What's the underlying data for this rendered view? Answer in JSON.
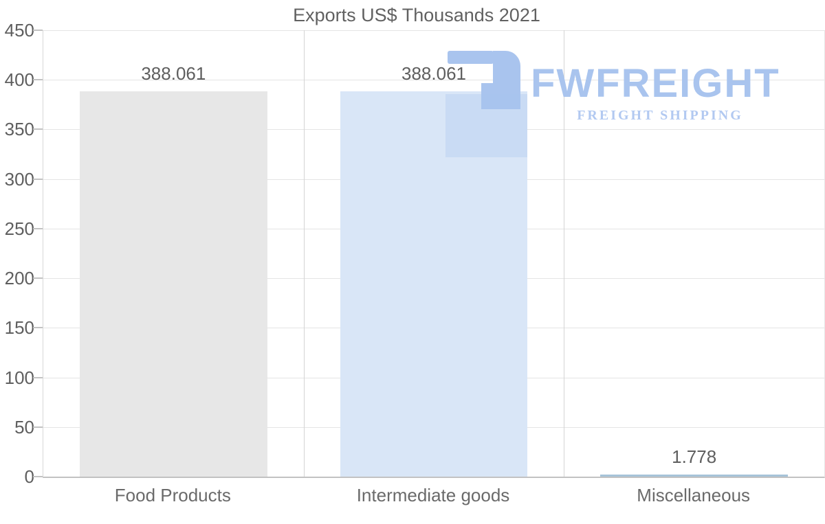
{
  "title": "Exports US$ Thousands 2021",
  "watermark": {
    "brand": "FWFREIGHT",
    "tagline": "FREIGHT SHIPPING",
    "brand_color": "#a9c4ee",
    "tagline_color": "#b2c9f1",
    "icon": "freight-logo-icon"
  },
  "chart_data": {
    "type": "bar",
    "title": "Exports US$ Thousands 2021",
    "categories": [
      "Food Products",
      "Intermediate goods",
      "Miscellaneous"
    ],
    "values": [
      388.061,
      388.061,
      1.778
    ],
    "value_labels": [
      "388.061",
      "388.061",
      "1.778"
    ],
    "bar_colors": [
      "#e7e7e7",
      "#d9e6f7",
      "#a6c3d8"
    ],
    "ylim": [
      0,
      450
    ],
    "yticks": [
      0,
      50,
      100,
      150,
      200,
      250,
      300,
      350,
      400,
      450
    ],
    "grid": true,
    "legend": "none",
    "xlabel": "",
    "ylabel": ""
  }
}
